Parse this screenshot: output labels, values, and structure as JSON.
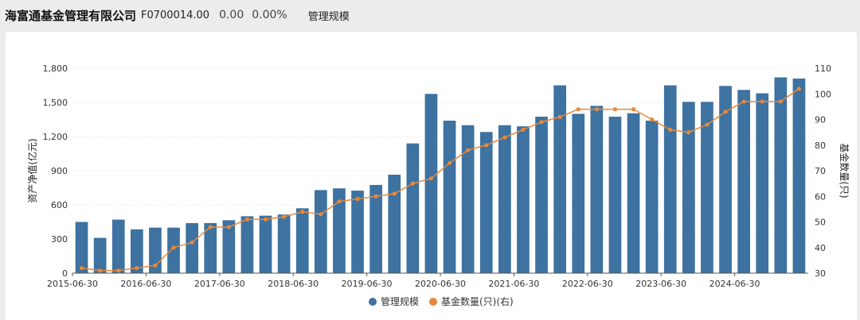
{
  "header": {
    "fund_name": "海富通基金管理有限公司",
    "fund_code": "F0700014.00",
    "value": "0.00",
    "change_pct": "0.00%",
    "tab_label": "管理规模"
  },
  "chart_data": {
    "type": "bar",
    "title": "",
    "ylabel": "资产净值(亿元)",
    "ylabel_right": "基金数量(只)",
    "ylim": [
      0,
      1800
    ],
    "yticks": [
      "0",
      "300",
      "600",
      "900",
      "1,200",
      "1,500",
      "1,800"
    ],
    "ylim_right": [
      30,
      110
    ],
    "yticks_right": [
      "30",
      "40",
      "50",
      "60",
      "70",
      "80",
      "90",
      "100",
      "110"
    ],
    "xtick_labels": [
      "2015-06-30",
      "2016-06-30",
      "2017-06-30",
      "2018-06-30",
      "2019-06-30",
      "2020-06-30",
      "2021-06-30",
      "2022-06-30",
      "2023-06-30",
      "2024-06-30"
    ],
    "xtick_positions": [
      0,
      4,
      8,
      12,
      16,
      20,
      24,
      28,
      32,
      36
    ],
    "legend_position": "bottom",
    "series": [
      {
        "name": "管理规模",
        "type": "bar",
        "color": "#3d72a1",
        "values": [
          450,
          310,
          470,
          385,
          400,
          400,
          440,
          440,
          465,
          500,
          505,
          515,
          570,
          730,
          745,
          725,
          775,
          865,
          1140,
          1575,
          1340,
          1300,
          1240,
          1300,
          1290,
          1375,
          1650,
          1400,
          1470,
          1375,
          1405,
          1340,
          1650,
          1505,
          1505,
          1645,
          1610,
          1580,
          1720,
          1710
        ]
      },
      {
        "name": "基金数量(只)(右)",
        "type": "line",
        "axis": "right",
        "color": "#e8883a",
        "values": [
          32,
          31,
          31,
          32,
          33,
          40,
          42,
          48,
          48,
          51,
          51,
          52,
          54,
          53,
          58,
          59,
          60,
          61,
          65,
          67,
          73,
          78,
          80,
          83,
          86,
          89,
          91,
          94,
          94,
          94,
          94,
          90,
          86,
          85,
          88,
          93,
          97,
          97,
          97,
          102
        ]
      }
    ]
  }
}
